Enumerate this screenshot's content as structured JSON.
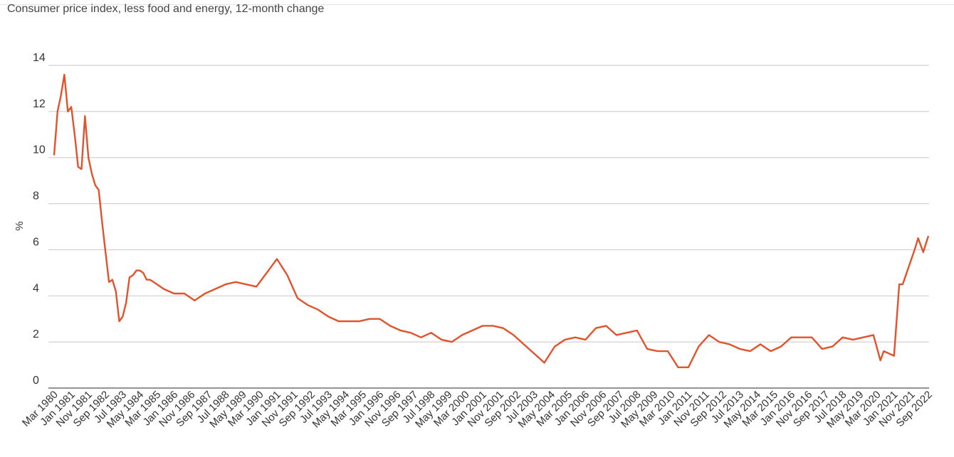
{
  "chart_data": {
    "type": "line",
    "subtitle": "Consumer price index, less food and energy, 12-month change",
    "ylabel": "%",
    "ylim": [
      0,
      14
    ],
    "y_ticks": [
      "0",
      "2",
      "4",
      "6",
      "8",
      "10",
      "12",
      "14"
    ],
    "grid": true,
    "x_tick_labels": [
      "Mar 1980",
      "Jan 1981",
      "Nov 1981",
      "Sep 1982",
      "Jul 1983",
      "May 1984",
      "Mar 1985",
      "Jan 1986",
      "Nov 1986",
      "Sep 1987",
      "Jul 1988",
      "May 1989",
      "Mar 1990",
      "Jan 1991",
      "Nov 1991",
      "Sep 1992",
      "Jul 1993",
      "May 1994",
      "Mar 1995",
      "Jan 1996",
      "Nov 1996",
      "Sep 1997",
      "Jul 1998",
      "May 1999",
      "Mar 2000",
      "Jan 2001",
      "Nov 2001",
      "Sep 2002",
      "Jul 2003",
      "May 2004",
      "Mar 2005",
      "Jan 2006",
      "Nov 2006",
      "Sep 2007",
      "Jul 2008",
      "May 2009",
      "Mar 2010",
      "Jan 2011",
      "Nov 2011",
      "Sep 2012",
      "Jul 2013",
      "May 2014",
      "Mar 2015",
      "Jan 2016",
      "Nov 2016",
      "Sep 2017",
      "Jul 2018",
      "May 2019",
      "Mar 2020",
      "Jan 2021",
      "Nov 2021",
      "Sep 2022"
    ],
    "series": [
      {
        "color": "#e0532c",
        "x": [
          "Mar 1980",
          "May 1980",
          "Jul 1980",
          "Sep 1980",
          "Nov 1980",
          "Jan 1981",
          "Mar 1981",
          "May 1981",
          "Jul 1981",
          "Sep 1981",
          "Nov 1981",
          "Jan 1982",
          "Mar 1982",
          "May 1982",
          "Jul 1982",
          "Sep 1982",
          "Nov 1982",
          "Jan 1983",
          "Mar 1983",
          "May 1983",
          "Jul 1983",
          "Sep 1983",
          "Nov 1983",
          "Jan 1984",
          "Mar 1984",
          "May 1984",
          "Jul 1984",
          "Sep 1984",
          "Nov 1984",
          "Jan 1985",
          "Jul 1985",
          "Jan 1986",
          "Jul 1986",
          "Jan 1987",
          "Jul 1987",
          "Jan 1988",
          "Jul 1988",
          "Jan 1989",
          "Jul 1989",
          "Jan 1990",
          "Jul 1990",
          "Jan 1991",
          "Jul 1991",
          "Jan 1992",
          "Jul 1992",
          "Jan 1993",
          "Jul 1993",
          "Jan 1994",
          "Jul 1994",
          "Jan 1995",
          "Jul 1995",
          "Jan 1996",
          "Jul 1996",
          "Jan 1997",
          "Jul 1997",
          "Jan 1998",
          "Jul 1998",
          "Jan 1999",
          "Jul 1999",
          "Jan 2000",
          "Jul 2000",
          "Jan 2001",
          "Jul 2001",
          "Jan 2002",
          "Jul 2002",
          "Jan 2003",
          "Jul 2003",
          "Jan 2004",
          "Jul 2004",
          "Jan 2005",
          "Jul 2005",
          "Jan 2006",
          "Jul 2006",
          "Jan 2007",
          "Jul 2007",
          "Jan 2008",
          "Jul 2008",
          "Jan 2009",
          "Jul 2009",
          "Jan 2010",
          "Jul 2010",
          "Jan 2011",
          "Jul 2011",
          "Jan 2012",
          "Jul 2012",
          "Jan 2013",
          "Jul 2013",
          "Jan 2014",
          "Jul 2014",
          "Jan 2015",
          "Jul 2015",
          "Jan 2016",
          "Jul 2016",
          "Jan 2017",
          "Jul 2017",
          "Jan 2018",
          "Jul 2018",
          "Jan 2019",
          "Jul 2019",
          "Jan 2020",
          "May 2020",
          "Jul 2020",
          "Jan 2021",
          "Apr 2021",
          "Jun 2021",
          "Jan 2022",
          "Mar 2022",
          "Jun 2022",
          "Sep 2022"
        ],
        "values": [
          10.1,
          12.0,
          12.7,
          13.6,
          12.0,
          12.2,
          11.0,
          9.6,
          9.5,
          11.8,
          10.0,
          9.3,
          8.8,
          8.6,
          7.2,
          5.9,
          4.6,
          4.7,
          4.2,
          2.9,
          3.1,
          3.7,
          4.8,
          4.9,
          5.1,
          5.1,
          5.0,
          4.7,
          4.7,
          4.6,
          4.3,
          4.1,
          4.1,
          3.8,
          4.1,
          4.3,
          4.5,
          4.6,
          4.5,
          4.4,
          5.0,
          5.6,
          4.9,
          3.9,
          3.6,
          3.4,
          3.1,
          2.9,
          2.9,
          2.9,
          3.0,
          3.0,
          2.7,
          2.5,
          2.4,
          2.2,
          2.4,
          2.1,
          2.0,
          2.3,
          2.5,
          2.7,
          2.7,
          2.6,
          2.3,
          1.9,
          1.5,
          1.1,
          1.8,
          2.1,
          2.2,
          2.1,
          2.6,
          2.7,
          2.3,
          2.4,
          2.5,
          1.7,
          1.6,
          1.6,
          0.9,
          0.9,
          1.8,
          2.3,
          2.0,
          1.9,
          1.7,
          1.6,
          1.9,
          1.6,
          1.8,
          2.2,
          2.2,
          2.2,
          1.7,
          1.8,
          2.2,
          2.1,
          2.2,
          2.3,
          1.2,
          1.6,
          1.4,
          4.5,
          4.5,
          6.0,
          6.5,
          5.9,
          6.6
        ]
      }
    ]
  }
}
